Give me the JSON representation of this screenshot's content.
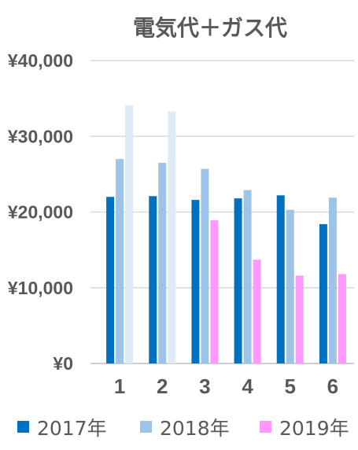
{
  "chart_data": {
    "type": "bar",
    "title": "電気代＋ガス代",
    "xlabel": "",
    "ylabel": "",
    "categories": [
      "1",
      "2",
      "3",
      "4",
      "5",
      "6"
    ],
    "ylim": [
      0,
      40000
    ],
    "yticks": [
      "¥0",
      "¥10,000",
      "¥20,000",
      "¥30,000",
      "¥40,000"
    ],
    "grid": true,
    "legend_position": "bottom",
    "series": [
      {
        "name": "2017年",
        "color": "#0070c0",
        "values": [
          22000,
          22100,
          21600,
          21800,
          22200,
          18400
        ]
      },
      {
        "name": "2018年",
        "color": "#9dc3e6",
        "values": [
          27000,
          26500,
          25700,
          22900,
          20300,
          21900
        ]
      },
      {
        "name": "2019年",
        "color": "#ff99ff",
        "values": [
          34100,
          33300,
          18900,
          13700,
          11600,
          11800
        ]
      }
    ],
    "faded_points": [
      {
        "series": 2,
        "index": 0,
        "color": "#deebf7"
      },
      {
        "series": 2,
        "index": 1,
        "color": "#deebf7"
      }
    ]
  }
}
